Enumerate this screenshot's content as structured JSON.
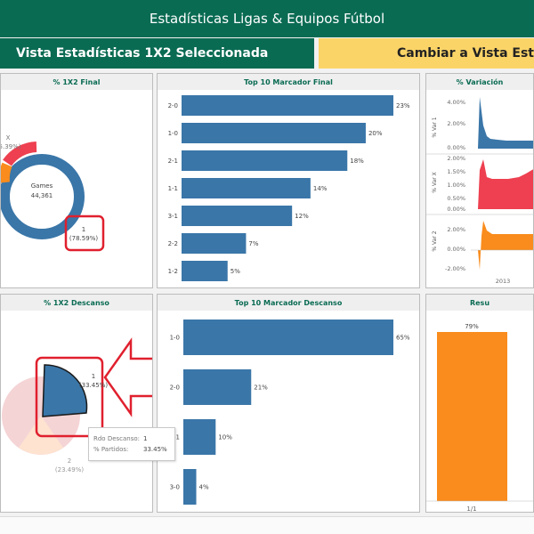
{
  "header": {
    "title": "Estadísticas Ligas & Equipos Fútbol"
  },
  "tabs": {
    "active_label": "Vista Estadísticas 1X2 Seleccionada",
    "other_label": "Cambiar a Vista Estadís"
  },
  "panels": {
    "final_donut": {
      "title": "% 1X2 Final",
      "center_label": "Games",
      "center_value": "44,361",
      "x_label": "X",
      "x_pct": "5.39%)",
      "one_label": "1",
      "one_pct": "(78.59%)"
    },
    "top10_final": {
      "title": "Top 10 Marcador Final",
      "categories": [
        "2-0",
        "1-0",
        "2-1",
        "1-1",
        "3-1",
        "2-2",
        "1-2"
      ],
      "value_labels": [
        "23%",
        "20%",
        "18%",
        "14%",
        "12%",
        "7%",
        "5%"
      ],
      "values": [
        23,
        20,
        18,
        14,
        12,
        7,
        5
      ]
    },
    "variation": {
      "title": "% Variación",
      "row1": {
        "axis": "% Var 1",
        "ticks": [
          "4.00%",
          "2.00%",
          "0.00%"
        ]
      },
      "row2": {
        "axis": "% Var X",
        "ticks": [
          "2.00%",
          "1.50%",
          "1.00%",
          "0.50%",
          "0.00%"
        ]
      },
      "row3": {
        "axis": "% Var 2",
        "ticks": [
          "2.00%",
          "0.00%",
          "-2.00%"
        ]
      },
      "x_tick": "2013"
    },
    "halftime_pie": {
      "title": "% 1X2 Descanso",
      "one_label": "1",
      "one_pct": "(33.45%)",
      "two_label": "2",
      "two_pct": "(23.49%)"
    },
    "top10_halftime": {
      "title": "Top 10 Marcador Descanso",
      "categories": [
        "1-0",
        "2-0",
        "-1",
        "3-0"
      ],
      "value_labels": [
        "65%",
        "21%",
        "10%",
        "4%"
      ],
      "values": [
        65,
        21,
        10,
        4
      ]
    },
    "result": {
      "title": "Resu",
      "value_label": "79%",
      "x_label": "1/1"
    }
  },
  "tooltip": {
    "rows": [
      {
        "key": "Rdo Descanso:",
        "value": "1"
      },
      {
        "key": "% Partidos:",
        "value": "33.45%"
      }
    ]
  },
  "chart_data": [
    {
      "type": "bar",
      "title": "Top 10 Marcador Final",
      "categories": [
        "2-0",
        "1-0",
        "2-1",
        "1-1",
        "3-1",
        "2-2",
        "1-2"
      ],
      "values": [
        23,
        20,
        18,
        14,
        12,
        7,
        5
      ]
    },
    {
      "type": "bar",
      "title": "Top 10 Marcador Descanso",
      "categories": [
        "1-0",
        "2-0",
        "-1",
        "3-0"
      ],
      "values": [
        65,
        21,
        10,
        4
      ]
    },
    {
      "type": "pie",
      "title": "% 1X2 Final",
      "categories": [
        "1",
        "X"
      ],
      "values": [
        78.59,
        5.39
      ]
    },
    {
      "type": "pie",
      "title": "% 1X2 Descanso",
      "categories": [
        "1",
        "2"
      ],
      "values": [
        33.45,
        23.49
      ]
    }
  ],
  "colors": {
    "header_green": "#0a6b53",
    "tab_yellow": "#fbd468",
    "bar_blue": "#3a76a8",
    "red": "#ee4050",
    "orange": "#f98c1c",
    "highlight_red": "#e0202e"
  }
}
